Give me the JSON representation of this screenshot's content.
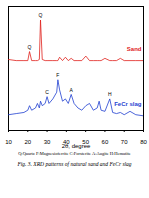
{
  "chart_data": {
    "type": "line",
    "title": "Fig. 3. XRD patterns of natural sand and FeCr slag",
    "subtitle": "Q:Quartz  F:Magnesioferrite  C:Forsterite  A:Augite  H:Hematite",
    "x_label": "2θ, degree",
    "x": [
      10,
      14,
      18,
      20,
      20.9,
      22,
      24,
      25,
      26,
      26.6,
      27.5,
      29,
      30,
      31,
      33,
      35,
      35.6,
      36.5,
      38,
      39.5,
      41,
      42.5,
      44,
      46,
      48,
      50.1,
      52,
      54,
      56,
      57,
      58,
      60,
      62.5,
      64,
      66,
      68,
      70,
      73,
      76,
      80
    ],
    "series": [
      {
        "name": "Sand",
        "color": "#e0201b",
        "values": [
          63,
          62,
          62,
          62,
          70,
          62,
          62,
          62,
          63,
          98,
          63,
          62,
          62,
          62,
          62,
          62,
          62,
          65,
          62,
          65,
          62,
          64,
          62,
          62,
          62,
          66,
          62,
          62,
          62,
          62,
          62,
          64,
          62,
          62,
          62,
          64,
          62,
          62,
          62,
          62
        ]
      },
      {
        "name": "FeCr slag",
        "color": "#1f3fd1",
        "values": [
          14,
          15,
          16,
          18,
          22,
          18,
          20,
          24,
          20,
          26,
          22,
          24,
          30,
          24,
          28,
          34,
          45,
          36,
          26,
          28,
          24,
          32,
          24,
          20,
          18,
          22,
          24,
          18,
          20,
          26,
          18,
          17,
          28,
          16,
          15,
          16,
          14,
          17,
          14,
          13
        ]
      }
    ],
    "annotations": [
      {
        "x": 20.9,
        "y": 72,
        "text": "Q"
      },
      {
        "x": 26.6,
        "y": 100,
        "text": "Q"
      },
      {
        "x": 30,
        "y": 32,
        "text": "C"
      },
      {
        "x": 35.6,
        "y": 47,
        "text": "F"
      },
      {
        "x": 42.5,
        "y": 34,
        "text": "A"
      },
      {
        "x": 62.5,
        "y": 30,
        "text": "H"
      }
    ],
    "xlim": [
      10,
      80
    ],
    "xticks": [
      10,
      20,
      30,
      40,
      50,
      60,
      70,
      80
    ],
    "ylim": [
      0,
      110
    ],
    "tick_labels": "x"
  }
}
